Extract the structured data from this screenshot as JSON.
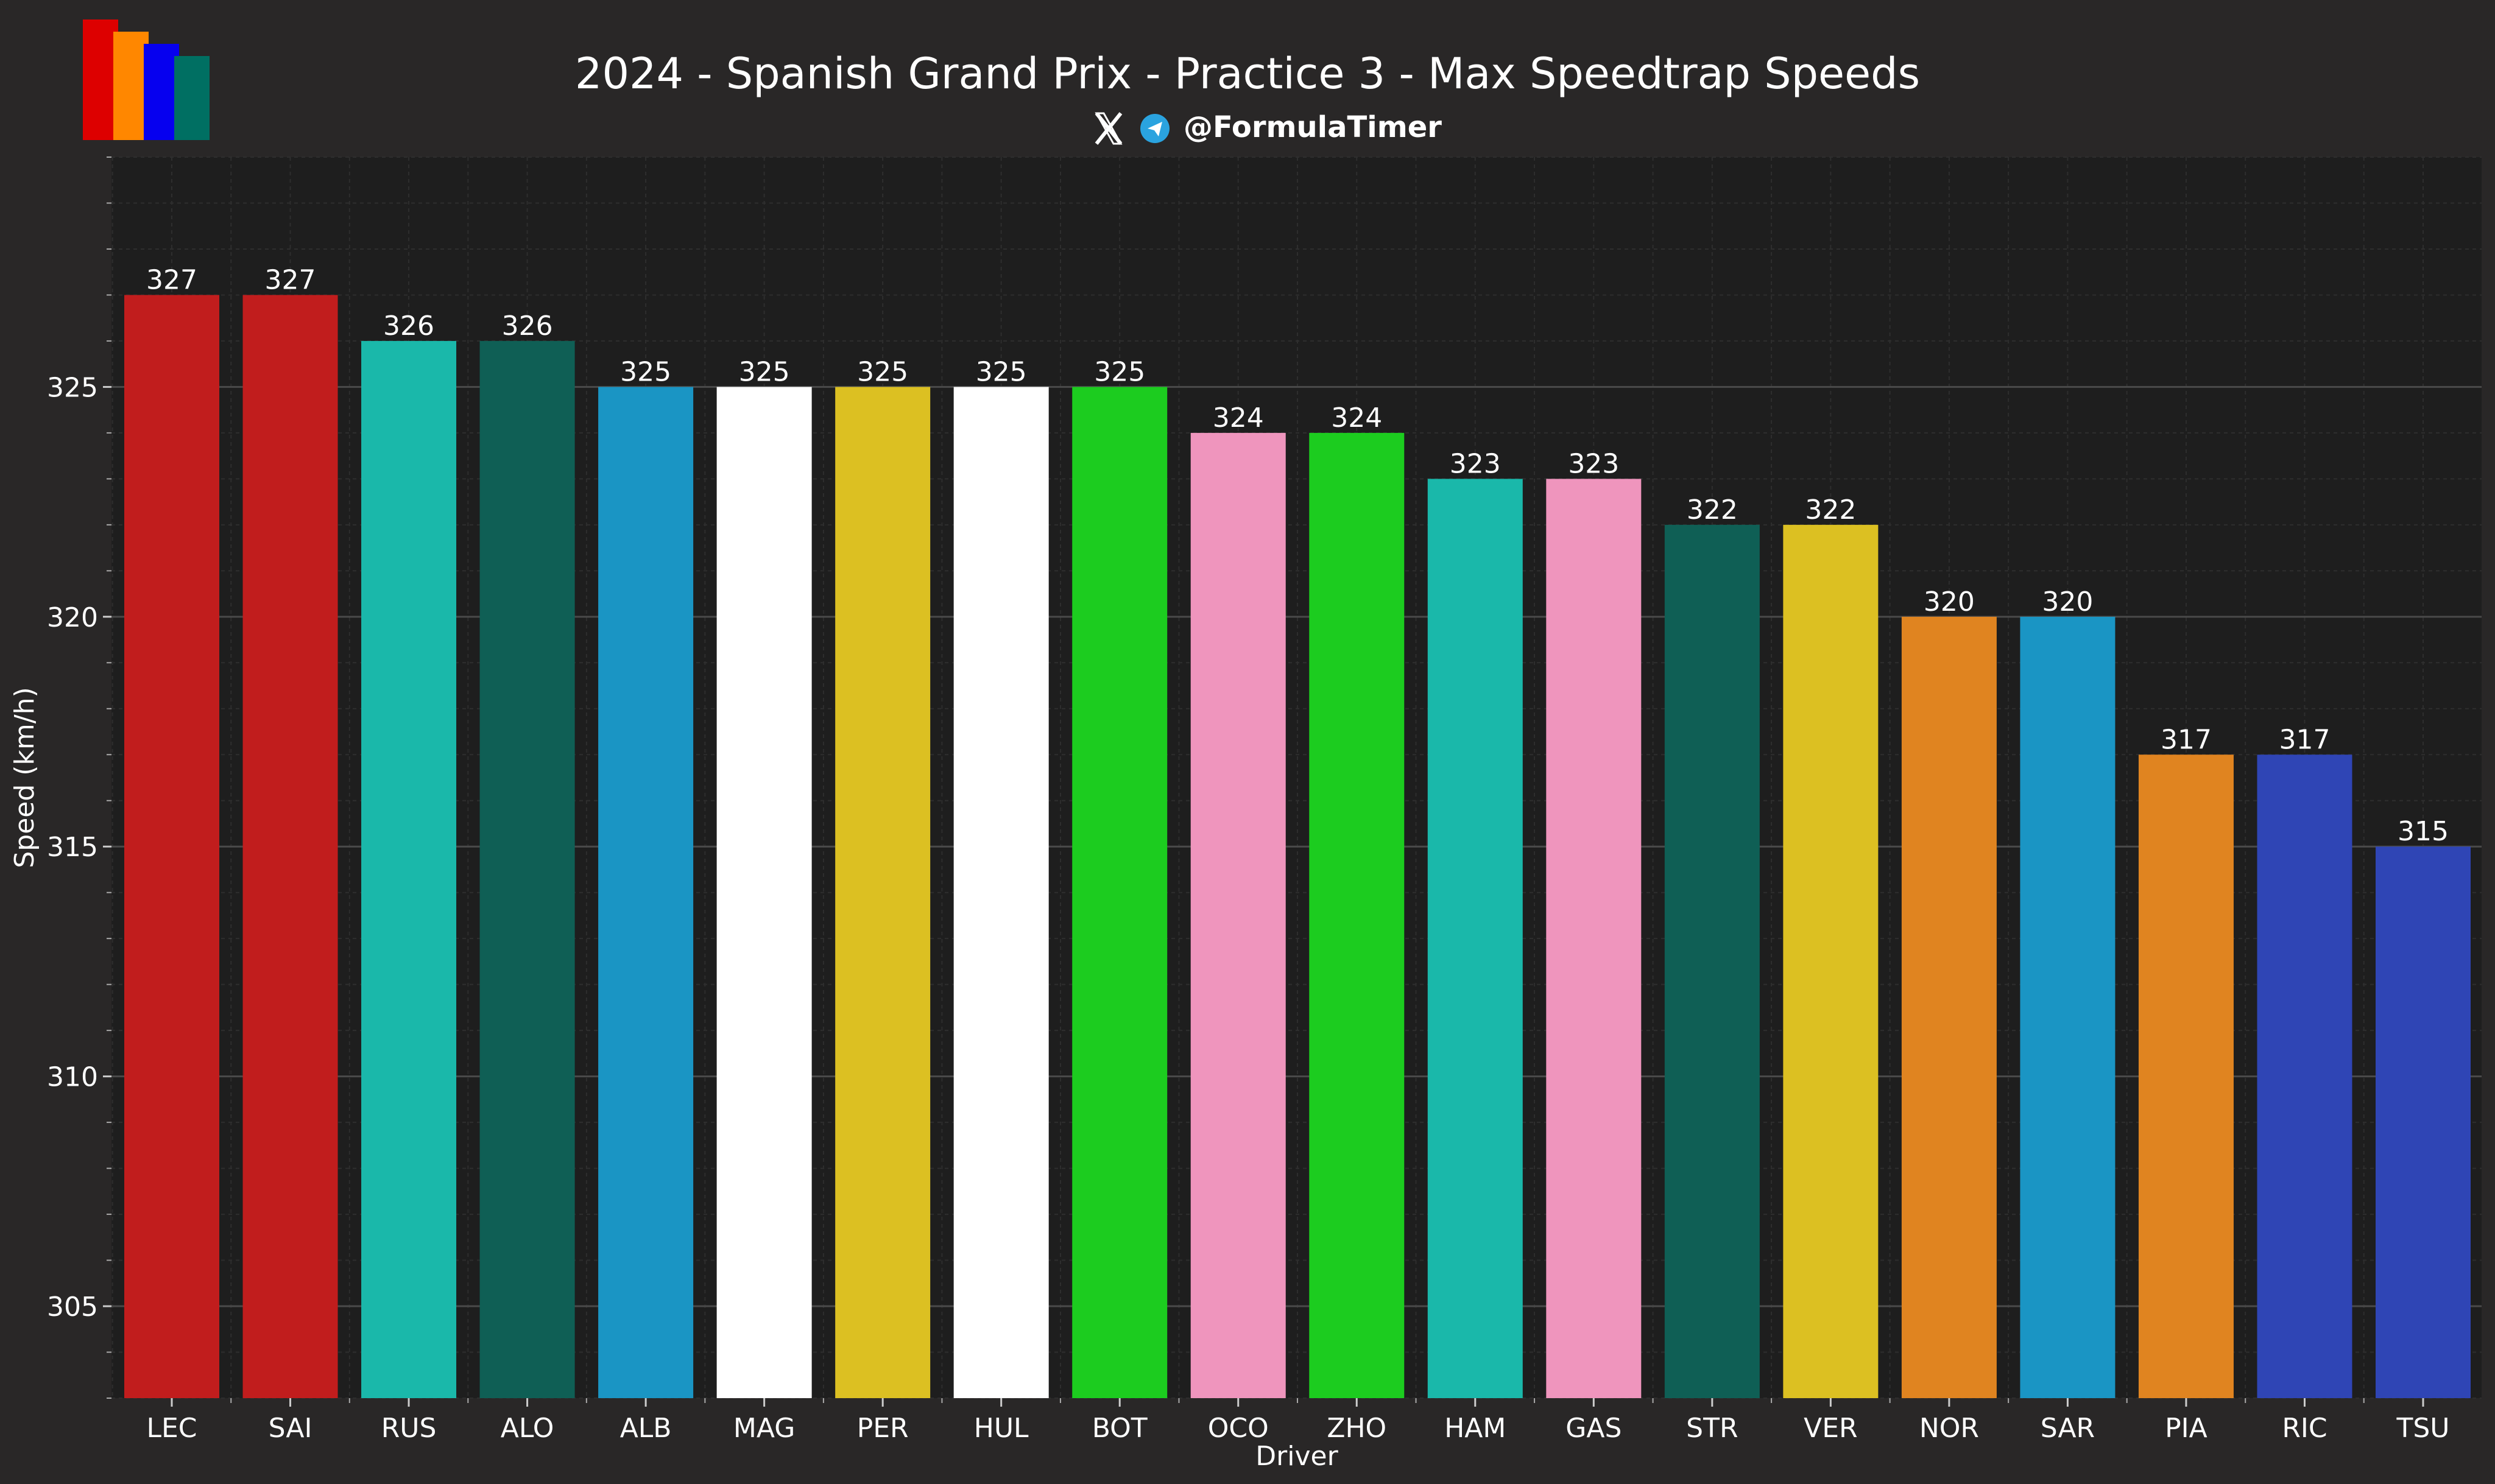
{
  "logo": {
    "colors": [
      "#dd0000",
      "#ff8700",
      "#0600ef",
      "#006f62"
    ]
  },
  "header": {
    "title": "2024 - Spanish Grand Prix - Practice 3 - Max Speedtrap Speeds",
    "handle": "@FormulaTimer",
    "icons": [
      "x-logo-icon",
      "telegram-icon"
    ]
  },
  "chart_data": {
    "type": "bar",
    "title": "2024 - Spanish Grand Prix - Practice 3 - Max Speedtrap Speeds",
    "xlabel": "Driver",
    "ylabel": "Speed (km/h)",
    "ylim": [
      303,
      330
    ],
    "yticks": [
      305,
      310,
      315,
      320,
      325
    ],
    "grid": true,
    "categories": [
      "LEC",
      "SAI",
      "RUS",
      "ALO",
      "ALB",
      "MAG",
      "PER",
      "HUL",
      "BOT",
      "OCO",
      "ZHO",
      "HAM",
      "GAS",
      "STR",
      "VER",
      "NOR",
      "SAR",
      "PIA",
      "RIC",
      "TSU"
    ],
    "values": [
      327,
      327,
      326,
      326,
      325,
      325,
      325,
      325,
      325,
      324,
      324,
      323,
      323,
      322,
      322,
      320,
      320,
      317,
      317,
      315
    ],
    "colors": [
      "#c11d1d",
      "#c11d1d",
      "#1ab8aa",
      "#0f5f55",
      "#1a95c4",
      "#ffffff",
      "#dcc022",
      "#ffffff",
      "#1ccc1f",
      "#ef95bd",
      "#1ccc1f",
      "#1ab8aa",
      "#ef95bd",
      "#0f5f55",
      "#dcc022",
      "#e08420",
      "#1a95c4",
      "#e08420",
      "#2f45b5",
      "#2f45b5"
    ]
  }
}
